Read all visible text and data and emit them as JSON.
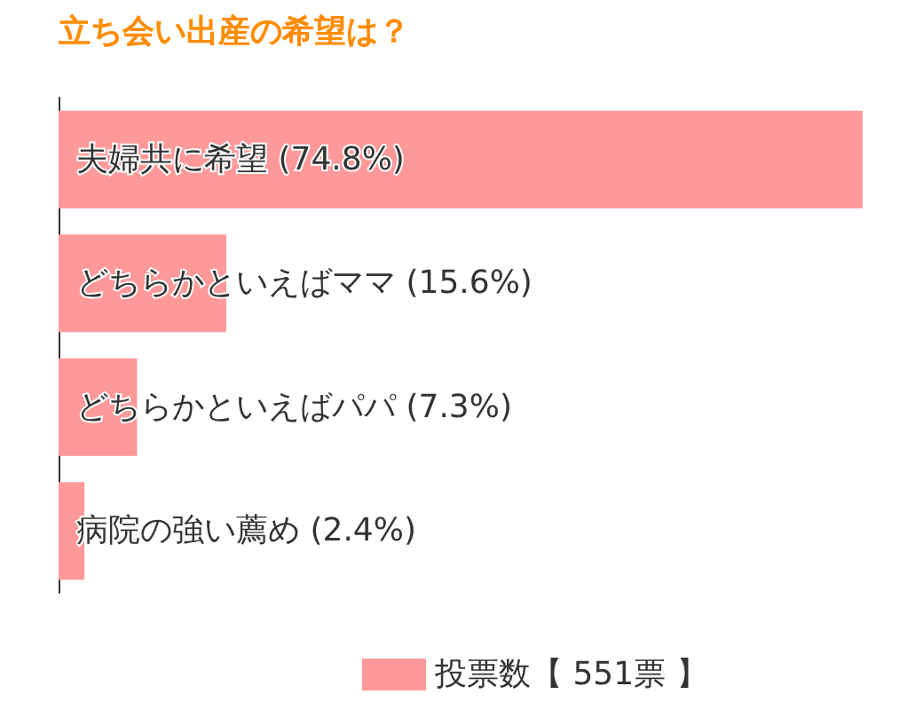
{
  "chart_data": {
    "type": "bar",
    "orientation": "horizontal",
    "title": "立ち会い出産の希望は？",
    "categories": [
      null,
      null,
      null,
      null
    ],
    "series": [
      {
        "name": "投票数【 551票 】",
        "color": "#ff9999",
        "values": [
          74.8,
          15.6,
          7.3,
          2.4
        ],
        "value_labels": [
          "夫婦共に希望 (74.8%)",
          "どちらかといえばママ (15.6%)",
          "どちらかといえばパパ (7.3%)",
          "病院の強い薦め (2.4%)"
        ]
      }
    ],
    "tick_labels": false,
    "grid": false,
    "legend": "bottom"
  }
}
